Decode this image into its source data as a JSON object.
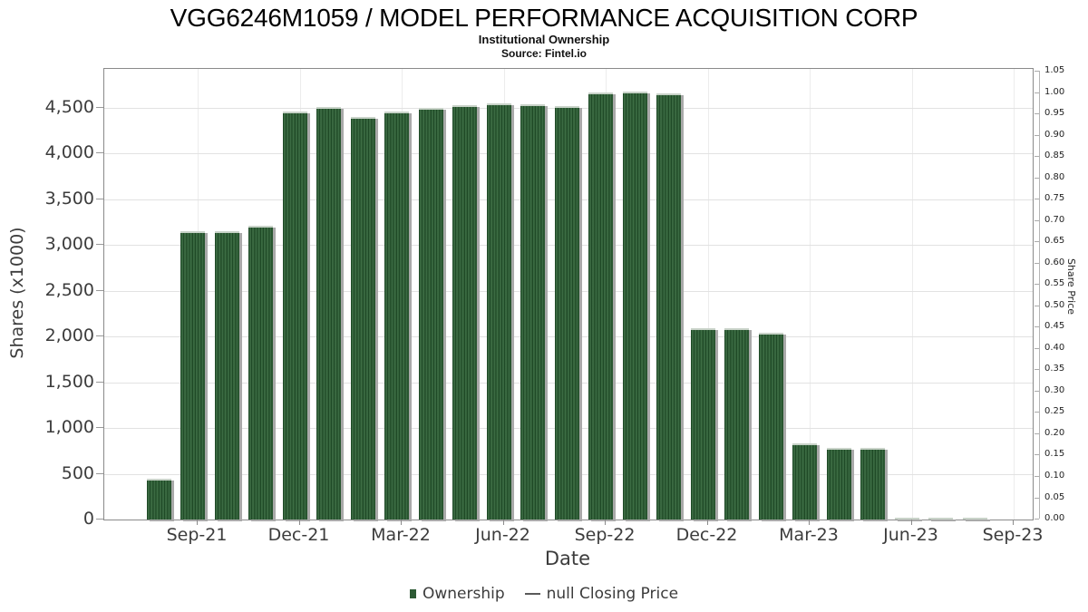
{
  "header": {
    "title": "VGG6246M1059 / MODEL PERFORMANCE ACQUISITION CORP",
    "subtitle": "Institutional Ownership",
    "source": "Source: Fintel.io"
  },
  "chart_data": {
    "type": "bar",
    "title": "VGG6246M1059 / MODEL PERFORMANCE ACQUISITION CORP",
    "subtitle": "Institutional Ownership",
    "source": "Source: Fintel.io",
    "xlabel": "Date",
    "ylabel_left": "Shares (x1000)",
    "ylabel_right": "Share Price",
    "categories": [
      "Aug-21",
      "Sep-21",
      "Oct-21",
      "Nov-21",
      "Dec-21",
      "Jan-22",
      "Feb-22",
      "Mar-22",
      "Apr-22",
      "May-22",
      "Jun-22",
      "Jul-22",
      "Aug-22",
      "Sep-22",
      "Oct-22",
      "Nov-22",
      "Dec-22",
      "Jan-23",
      "Feb-23",
      "Mar-23",
      "Apr-23",
      "May-23",
      "Jun-23",
      "Jul-23",
      "Aug-23"
    ],
    "series": [
      {
        "name": "Ownership",
        "values": [
          445,
          3150,
          3155,
          3210,
          4455,
          4505,
          4400,
          4460,
          4500,
          4530,
          4545,
          4540,
          4520,
          4670,
          4680,
          4660,
          2095,
          2095,
          2040,
          835,
          780,
          780,
          25,
          20,
          15
        ]
      },
      {
        "name": "null Closing Price",
        "values": null
      }
    ],
    "x_tick_labels": [
      "Sep-21",
      "Dec-21",
      "Mar-22",
      "Jun-22",
      "Sep-22",
      "Dec-22",
      "Mar-23",
      "Jun-23",
      "Sep-23"
    ],
    "y_left_tick_labels": [
      "0",
      "500",
      "1,000",
      "1,500",
      "2,000",
      "2,500",
      "3,000",
      "3,500",
      "4,000",
      "4,500"
    ],
    "y_left_tick_values": [
      0,
      500,
      1000,
      1500,
      2000,
      2500,
      3000,
      3500,
      4000,
      4500
    ],
    "ylim_left": [
      0,
      4925
    ],
    "y_right_tick_labels": [
      "0.00",
      "0.05",
      "0.10",
      "0.15",
      "0.20",
      "0.25",
      "0.30",
      "0.35",
      "0.40",
      "0.45",
      "0.50",
      "0.55",
      "0.60",
      "0.65",
      "0.70",
      "0.75",
      "0.80",
      "0.85",
      "0.90",
      "0.95",
      "1.00",
      "1.05"
    ],
    "ylim_right": [
      0,
      1.05
    ],
    "grid": true,
    "legend_position": "bottom",
    "legend": [
      {
        "label": "Ownership",
        "marker": "square",
        "color": "#2d5a34"
      },
      {
        "label": "null Closing Price",
        "marker": "dash",
        "color": "#5a5a5a"
      }
    ],
    "colors": {
      "bar_green_dark": "#1f4a27",
      "bar_green_mid": "#2f5f37",
      "bar_green_light": "#3e6e46",
      "bar_top_cap": "#c9d3c9",
      "bar_shadow": "#a9a9a9",
      "gridline": "#e2e2e2",
      "spine": "#8a8a8a",
      "text": "#3c3c3c"
    }
  }
}
